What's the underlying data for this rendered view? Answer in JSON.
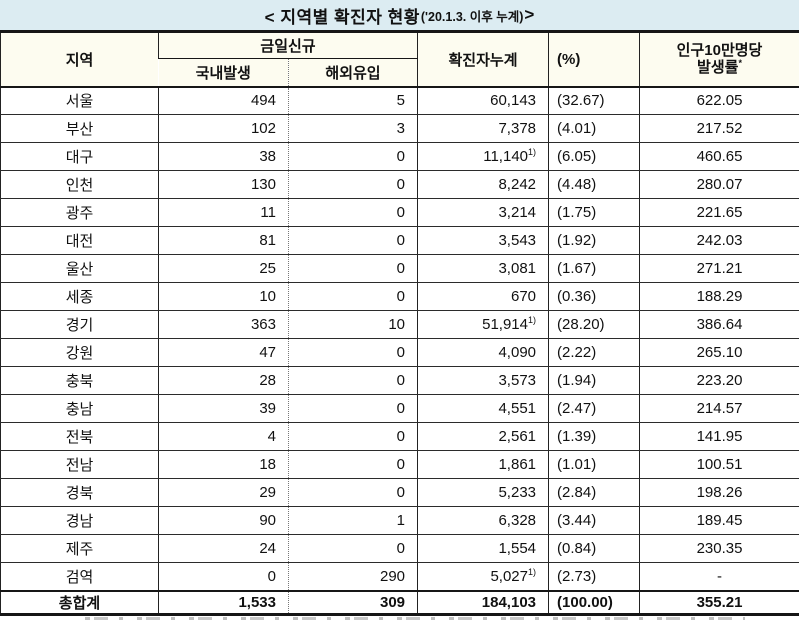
{
  "title": {
    "main": "< 지역별 확진자 현황",
    "sub": "('20.1.3. 이후 누계)",
    "close": " >"
  },
  "colors": {
    "title_bg": "#dcecf2",
    "header_bg": "#fdfcf0",
    "border": "#161616"
  },
  "table": {
    "headers": {
      "region": "지역",
      "today_new": "금일신규",
      "domestic": "국내발생",
      "imported": "해외유입",
      "cumulative": "확진자누계",
      "percent": "(%)",
      "per100k_line1": "인구10만명당",
      "per100k_line2": "발생률",
      "per100k_sup": "*"
    },
    "rows": [
      {
        "region": "서울",
        "domestic": "494",
        "imported": "5",
        "cumulative": "60,143",
        "cumulative_sup": "",
        "percent": "(32.67)",
        "per100k": "622.05"
      },
      {
        "region": "부산",
        "domestic": "102",
        "imported": "3",
        "cumulative": "7,378",
        "cumulative_sup": "",
        "percent": "(4.01)",
        "per100k": "217.52"
      },
      {
        "region": "대구",
        "domestic": "38",
        "imported": "0",
        "cumulative": "11,140",
        "cumulative_sup": "1)",
        "percent": "(6.05)",
        "per100k": "460.65"
      },
      {
        "region": "인천",
        "domestic": "130",
        "imported": "0",
        "cumulative": "8,242",
        "cumulative_sup": "",
        "percent": "(4.48)",
        "per100k": "280.07"
      },
      {
        "region": "광주",
        "domestic": "11",
        "imported": "0",
        "cumulative": "3,214",
        "cumulative_sup": "",
        "percent": "(1.75)",
        "per100k": "221.65"
      },
      {
        "region": "대전",
        "domestic": "81",
        "imported": "0",
        "cumulative": "3,543",
        "cumulative_sup": "",
        "percent": "(1.92)",
        "per100k": "242.03"
      },
      {
        "region": "울산",
        "domestic": "25",
        "imported": "0",
        "cumulative": "3,081",
        "cumulative_sup": "",
        "percent": "(1.67)",
        "per100k": "271.21"
      },
      {
        "region": "세종",
        "domestic": "10",
        "imported": "0",
        "cumulative": "670",
        "cumulative_sup": "",
        "percent": "(0.36)",
        "per100k": "188.29"
      },
      {
        "region": "경기",
        "domestic": "363",
        "imported": "10",
        "cumulative": "51,914",
        "cumulative_sup": "1)",
        "percent": "(28.20)",
        "per100k": "386.64"
      },
      {
        "region": "강원",
        "domestic": "47",
        "imported": "0",
        "cumulative": "4,090",
        "cumulative_sup": "",
        "percent": "(2.22)",
        "per100k": "265.10"
      },
      {
        "region": "충북",
        "domestic": "28",
        "imported": "0",
        "cumulative": "3,573",
        "cumulative_sup": "",
        "percent": "(1.94)",
        "per100k": "223.20"
      },
      {
        "region": "충남",
        "domestic": "39",
        "imported": "0",
        "cumulative": "4,551",
        "cumulative_sup": "",
        "percent": "(2.47)",
        "per100k": "214.57"
      },
      {
        "region": "전북",
        "domestic": "4",
        "imported": "0",
        "cumulative": "2,561",
        "cumulative_sup": "",
        "percent": "(1.39)",
        "per100k": "141.95"
      },
      {
        "region": "전남",
        "domestic": "18",
        "imported": "0",
        "cumulative": "1,861",
        "cumulative_sup": "",
        "percent": "(1.01)",
        "per100k": "100.51"
      },
      {
        "region": "경북",
        "domestic": "29",
        "imported": "0",
        "cumulative": "5,233",
        "cumulative_sup": "",
        "percent": "(2.84)",
        "per100k": "198.26"
      },
      {
        "region": "경남",
        "domestic": "90",
        "imported": "1",
        "cumulative": "6,328",
        "cumulative_sup": "",
        "percent": "(3.44)",
        "per100k": "189.45"
      },
      {
        "region": "제주",
        "domestic": "24",
        "imported": "0",
        "cumulative": "1,554",
        "cumulative_sup": "",
        "percent": "(0.84)",
        "per100k": "230.35"
      },
      {
        "region": "검역",
        "domestic": "0",
        "imported": "290",
        "cumulative": "5,027",
        "cumulative_sup": "1)",
        "percent": "(2.73)",
        "per100k": "-"
      }
    ],
    "total": {
      "region": "총합계",
      "domestic": "1,533",
      "imported": "309",
      "cumulative": "184,103",
      "cumulative_sup": "",
      "percent": "(100.00)",
      "per100k": "355.21"
    }
  }
}
